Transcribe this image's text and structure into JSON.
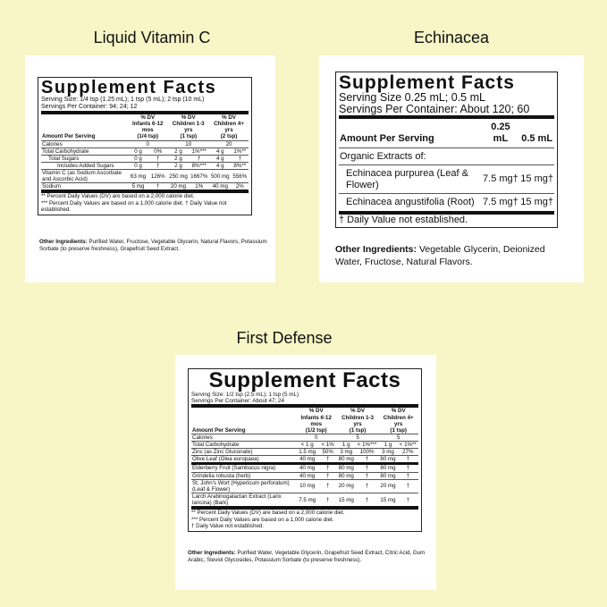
{
  "panels": [
    {
      "product": "Liquid Vitamin C",
      "facts_title": "Supplement Facts",
      "serving": [
        "Serving Size: 1/4 tsp (1.25 mL); 1 tsp (5 mL); 2 tsp (10 mL)",
        "Servings Per Container: 94; 24; 12"
      ],
      "header": [
        [
          "Amount Per Serving"
        ],
        [
          "% DV",
          "Infants 6-12 mos",
          "(1/4 tsp)"
        ],
        [
          "% DV",
          "Children 1-3 yrs",
          "(1 tsp)"
        ],
        [
          "% DV",
          "Children 4+ yrs",
          "(2 tsp)"
        ]
      ],
      "rows": [
        {
          "name": "Calories",
          "values": [
            "0",
            "10",
            "20"
          ]
        },
        {
          "name": "Total Carbohydrate",
          "values": [
            "0 g",
            "0%",
            "2 g",
            "1%***",
            "4 g",
            "1%**"
          ]
        },
        {
          "name": "Total Sugars",
          "values": [
            "0 g",
            "†",
            "2 g",
            "†",
            "4 g",
            "†"
          ]
        },
        {
          "name": "Includes Added Sugars",
          "values": [
            "0 g",
            "†",
            "2 g",
            "8%***",
            "4 g",
            "8%**"
          ]
        },
        {
          "name": "Vitamin C (as Sodium Ascorbate and Ascorbic Acid)",
          "values": [
            "63 mg",
            "126%",
            "250 mg",
            "1667%",
            "500 mg",
            "556%"
          ]
        },
        {
          "name": "Sodium",
          "values": [
            "5 mg",
            "†",
            "20 mg",
            "1%",
            "40 mg",
            "2%"
          ]
        }
      ],
      "footnotes": [
        "** Percent Daily Values (DV) are based on a 2,000 calorie diet.",
        "*** Percent Daily Values are based on a 1,000 calorie diet. † Daily Value not established."
      ],
      "other_label": "Other Ingredients:",
      "other_text": "Purified Water, Fructose, Vegetable Glycerin, Natural Flavors, Potassium Sorbate (to preserve freshness), Grapefruit Seed Extract."
    },
    {
      "product": "Echinacea",
      "facts_title": "Supplement Facts",
      "serving": [
        "Serving Size 0.25 mL; 0.5 mL",
        "Servings Per Container: About 120; 60"
      ],
      "header": [
        [
          "Amount Per Serving"
        ],
        [
          "0.25 mL"
        ],
        [
          "0.5 mL"
        ]
      ],
      "rows": [
        {
          "name": "Organic Extracts of:",
          "values": []
        },
        {
          "name": "Echinacea purpurea (Leaf & Flower)",
          "values": [
            "7.5 mg†",
            "15 mg†"
          ]
        },
        {
          "name": "Echinacea angustifolia (Root)",
          "values": [
            "7.5 mg†",
            "15 mg†"
          ]
        }
      ],
      "footnotes": [
        "† Daily Value not established."
      ],
      "other_label": "Other Ingredients:",
      "other_text": "Vegetable Glycerin, Deionized Water, Fructose, Natural Flavors."
    },
    {
      "product": "First Defense",
      "facts_title": "Supplement Facts",
      "serving": [
        "Serving Size: 1/2 tsp (2.5 mL); 1 tsp (5 mL)",
        "Servings Per Container: About 47; 24"
      ],
      "header": [
        [
          "Amount Per Serving"
        ],
        [
          "% DV",
          "Infants 6-12 mos",
          "(1/2 tsp)"
        ],
        [
          "% DV",
          "Children 1-3 yrs",
          "(1 tsp)"
        ],
        [
          "% DV",
          "Children 4+ yrs",
          "(1 tsp)"
        ]
      ],
      "rows": [
        {
          "name": "Calories",
          "values": [
            "0",
            "5",
            "5"
          ]
        },
        {
          "name": "Total Carbohydrate",
          "values": [
            "< 1 g",
            "< 1%",
            "1 g",
            "< 1%***",
            "1 g",
            "< 1%**"
          ]
        },
        {
          "name": "Zinc (as Zinc Gluconate)",
          "values": [
            "1.5 mg",
            "50%",
            "3 mg",
            "100%",
            "3 mg",
            "27%"
          ]
        },
        {
          "name": "Olive Leaf (Olea europaea)",
          "values": [
            "40 mg",
            "†",
            "80 mg",
            "†",
            "80 mg",
            "†"
          ]
        },
        {
          "name": "Elderberry Fruit (Sambucus nigra)",
          "values": [
            "40 mg",
            "†",
            "80 mg",
            "†",
            "80 mg",
            "†"
          ]
        },
        {
          "name": "Grindelia robusta (herb)",
          "values": [
            "40 mg",
            "†",
            "80 mg",
            "†",
            "80 mg",
            "†"
          ]
        },
        {
          "name": "St. John's Wort (Hypericum perforatum) (Leaf & Flower)",
          "values": [
            "10 mg",
            "†",
            "20 mg",
            "†",
            "20 mg",
            "†"
          ]
        },
        {
          "name": "Larch Arabinogalactan Extract (Larix laricina) (Bark)",
          "values": [
            "7.5 mg",
            "†",
            "15 mg",
            "†",
            "15 mg",
            "†"
          ]
        }
      ],
      "footnotes": [
        "** Percent Daily Values (DV) are based on a 2,000 calorie diet.",
        "*** Percent Daily Values are based on a 1,000 calorie diet.",
        "† Daily Value not established."
      ],
      "other_label": "Other Ingredients:",
      "other_text": "Purified Water, Vegetable Glycerin, Grapefruit Seed Extract, Citric Acid, Gum Arabic, Steviol Glycosides, Potassium Sorbate (to preserve freshness)."
    }
  ]
}
